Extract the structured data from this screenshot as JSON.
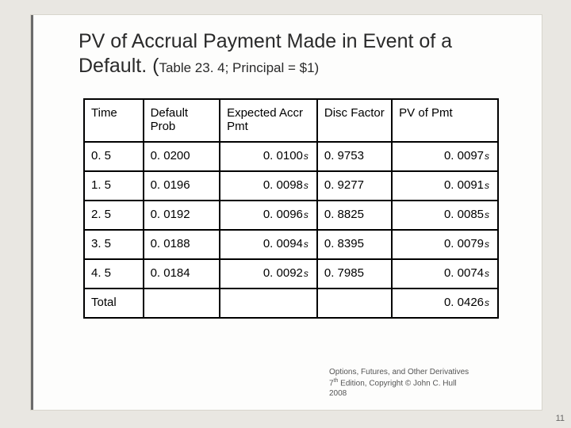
{
  "title": {
    "main": "PV of Accrual Payment Made in Event of a Default. (",
    "sub": "Table 23. 4; Principal = $1)"
  },
  "table": {
    "columns": [
      "Time",
      "Default Prob",
      "Expected Accr Pmt",
      "Disc Factor",
      "PV of Pmt"
    ],
    "rows": [
      {
        "time": "0. 5",
        "prob": "0. 0200",
        "accr_val": "0. 0100",
        "accr_has_s": true,
        "disc": "0. 9753",
        "pv_val": "0. 0097",
        "pv_has_s": true
      },
      {
        "time": "1. 5",
        "prob": "0. 0196",
        "accr_val": "0. 0098",
        "accr_has_s": true,
        "disc": "0. 9277",
        "pv_val": "0. 0091",
        "pv_has_s": true
      },
      {
        "time": "2. 5",
        "prob": "0. 0192",
        "accr_val": "0. 0096",
        "accr_has_s": true,
        "disc": "0. 8825",
        "pv_val": "0. 0085",
        "pv_has_s": true
      },
      {
        "time": "3. 5",
        "prob": "0. 0188",
        "accr_val": "0. 0094",
        "accr_has_s": true,
        "disc": "0. 8395",
        "pv_val": "0. 0079",
        "pv_has_s": true
      },
      {
        "time": "4. 5",
        "prob": "0. 0184",
        "accr_val": "0. 0092",
        "accr_has_s": true,
        "disc": "0. 7985",
        "pv_val": "0. 0074",
        "pv_has_s": true
      }
    ],
    "total_label": "Total",
    "total_val": "0. 0426",
    "total_has_s": true
  },
  "footer": {
    "line1": "Options, Futures, and Other Derivatives",
    "line2a": "7",
    "line2b": "th",
    "line2c": " Edition, Copyright © John C. Hull",
    "line3": "2008"
  },
  "page_number": "11",
  "s_glyph": "s"
}
